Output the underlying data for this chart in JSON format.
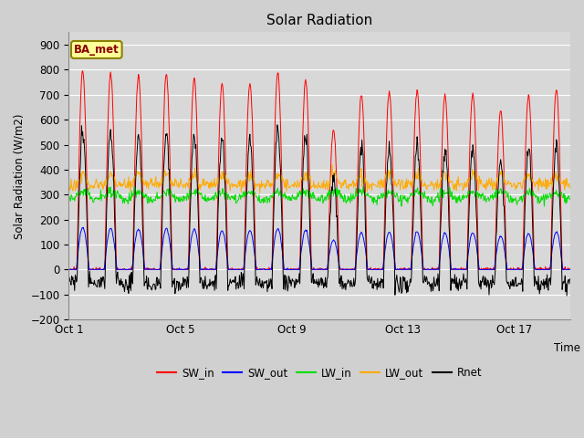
{
  "title": "Solar Radiation",
  "ylabel": "Solar Radiation (W/m2)",
  "xlabel": "Time",
  "ylim": [
    -200,
    950
  ],
  "yticks": [
    -200,
    -100,
    0,
    100,
    200,
    300,
    400,
    500,
    600,
    700,
    800,
    900
  ],
  "xtick_labels": [
    "Oct 1",
    "Oct 5",
    "Oct 9",
    "Oct 13",
    "Oct 17"
  ],
  "xtick_positions": [
    0,
    4,
    8,
    12,
    16
  ],
  "plot_bg_color": "#d8d8d8",
  "grid_color": "#ffffff",
  "colors": {
    "SW_in": "#ff0000",
    "SW_out": "#0000ff",
    "LW_in": "#00dd00",
    "LW_out": "#ffaa00",
    "Rnet": "#000000"
  },
  "legend_label": "BA_met",
  "legend_box_color": "#ffff99",
  "legend_box_edge": "#8B8000",
  "n_days": 18,
  "dt_hours": 0.5,
  "peaks_SW": [
    800,
    785,
    775,
    785,
    770,
    745,
    745,
    790,
    755,
    560,
    700,
    715,
    720,
    700,
    705,
    640,
    695,
    720
  ],
  "figsize": [
    6.4,
    4.8
  ],
  "dpi": 100
}
